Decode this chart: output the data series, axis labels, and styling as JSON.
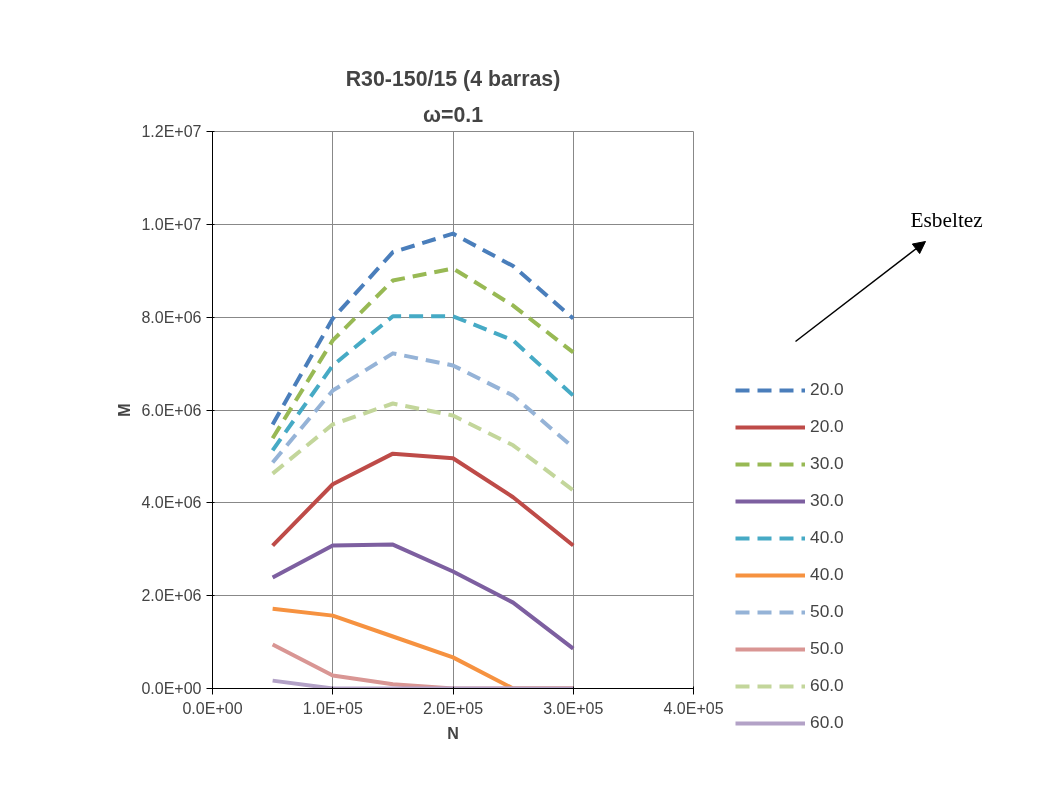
{
  "chart_data": {
    "type": "line",
    "title": "R30-150/15 (4 barras)",
    "subtitle": "ω=0.1",
    "xlabel": "N",
    "ylabel": "M",
    "annotations": [
      "Esbeltez"
    ],
    "x": [
      50000,
      100000,
      150000,
      200000,
      250000,
      300000
    ],
    "xlim": [
      0,
      400000
    ],
    "xticks": [
      {
        "value": 0,
        "label": "0.0E+00"
      },
      {
        "value": 100000,
        "label": "1.0E+05"
      },
      {
        "value": 200000,
        "label": "2.0E+05"
      },
      {
        "value": 300000,
        "label": "3.0E+05"
      },
      {
        "value": 400000,
        "label": "4.0E+05"
      }
    ],
    "ylim": [
      0,
      12000000
    ],
    "yticks": [
      {
        "value": 0,
        "label": "0.0E+00"
      },
      {
        "value": 2000000,
        "label": "2.0E+06"
      },
      {
        "value": 4000000,
        "label": "4.0E+06"
      },
      {
        "value": 6000000,
        "label": "6.0E+06"
      },
      {
        "value": 8000000,
        "label": "8.0E+06"
      },
      {
        "value": 10000000,
        "label": "1.0E+07"
      },
      {
        "value": 12000000,
        "label": "1.2E+07"
      }
    ],
    "grid": true,
    "legend": "right",
    "marker": "none",
    "series": [
      {
        "name": "20.0",
        "color": "#4a7ebb",
        "line_style": "dashed",
        "values": [
          5690000,
          7970000,
          9400000,
          9800000,
          9100000,
          7970000
        ]
      },
      {
        "name": "20.0",
        "color": "#be4b48",
        "line_style": "solid",
        "values": [
          3080000,
          4400000,
          5060000,
          4960000,
          4120000,
          3080000
        ]
      },
      {
        "name": "30.0",
        "color": "#98b954",
        "line_style": "dashed",
        "values": [
          5390000,
          7500000,
          8790000,
          9050000,
          8250000,
          7240000
        ]
      },
      {
        "name": "30.0",
        "color": "#7d5fa0",
        "line_style": "solid",
        "values": [
          2390000,
          3080000,
          3100000,
          2520000,
          1850000,
          860000
        ]
      },
      {
        "name": "40.0",
        "color": "#46aac5",
        "line_style": "dashed",
        "values": [
          5130000,
          6960000,
          8020000,
          8020000,
          7500000,
          6310000
        ]
      },
      {
        "name": "40.0",
        "color": "#f69240",
        "line_style": "solid",
        "values": [
          1720000,
          1570000,
          1120000,
          670000,
          0,
          0
        ]
      },
      {
        "name": "50.0",
        "color": "#95b3d7",
        "line_style": "dashed",
        "values": [
          4870000,
          6420000,
          7220000,
          6960000,
          6310000,
          5190000
        ]
      },
      {
        "name": "50.0",
        "color": "#d99694",
        "line_style": "solid",
        "values": [
          950000,
          280000,
          90000,
          0,
          0,
          0
        ]
      },
      {
        "name": "60.0",
        "color": "#c3d69b",
        "line_style": "dashed",
        "values": [
          4630000,
          5690000,
          6140000,
          5880000,
          5240000,
          4270000
        ]
      },
      {
        "name": "60.0",
        "color": "#b3a2c7",
        "line_style": "solid",
        "values": [
          170000,
          0,
          0,
          0,
          0,
          0
        ]
      }
    ]
  }
}
